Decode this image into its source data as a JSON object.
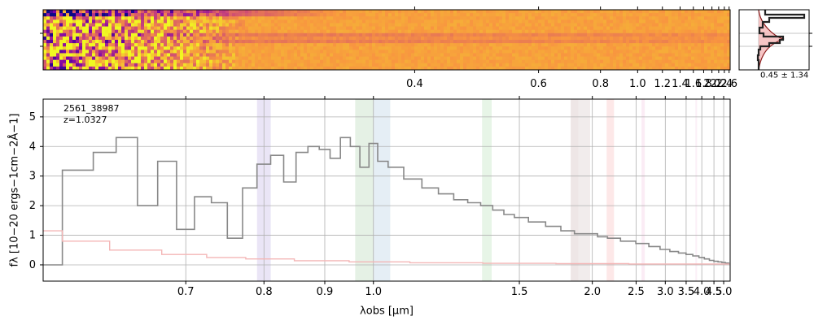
{
  "chart_data": [
    {
      "type": "heatmap",
      "panel": "2d-spectrum",
      "x_scale": "reciprocal",
      "xlim": [
        0.2,
        2.65
      ],
      "x_ticks": [
        0.4,
        0.6,
        0.8,
        1.0,
        1.2,
        1.4,
        1.6,
        1.8,
        2.0,
        2.2,
        2.4,
        2.6
      ],
      "x_tick_labels": [
        "0.4",
        "0.6",
        "0.8",
        "1.0",
        "1.2",
        "1.4",
        "1.6",
        "1.8",
        "2.0",
        "2.2",
        "2.4",
        "2.6"
      ],
      "colormap": "plasma",
      "colors": {
        "low": "#0d0887",
        "mid": "#cc4778",
        "high": "#f0f921",
        "bulk": "#fca636"
      },
      "description_trace": "two bright horizontal traces near spatial center, noisy dark/yellow region at short wavelengths"
    },
    {
      "type": "line",
      "panel": "profile",
      "annotation": "0.45 ± 1.34",
      "colors": {
        "profile": "#222222",
        "model": "#8b1a1a",
        "fill": "#f4b6b6"
      }
    },
    {
      "type": "line",
      "panel": "1d-spectrum",
      "title": "",
      "annotation_lines": [
        "2561_38987",
        "z=1.0327"
      ],
      "xlabel": "λobs [μm]",
      "ylabel": "fλ [10−20 ergs−1cm−2Å−1]",
      "x_scale": "reciprocal",
      "xlim": [
        0.57,
        5.4
      ],
      "ylim": [
        -0.55,
        5.6
      ],
      "x_ticks": [
        0.7,
        0.8,
        0.9,
        1.0,
        1.5,
        2.0,
        2.5,
        3.0,
        3.5,
        4.0,
        4.5,
        5.0
      ],
      "x_tick_labels": [
        "0.7",
        "0.8",
        "0.9",
        "1.0",
        "1.5",
        "2.0",
        "2.5",
        "3.0",
        "3.5",
        "4.0",
        "4.5",
        "5.0"
      ],
      "y_ticks": [
        0,
        1,
        2,
        3,
        4,
        5
      ],
      "y_tick_labels": [
        "0",
        "1",
        "2",
        "3",
        "4",
        "5"
      ],
      "grid": true,
      "line_bands": [
        {
          "x": [
            0.79,
            0.81
          ],
          "color": "#d8d0ee"
        },
        {
          "x": [
            0.96,
            1.0
          ],
          "color": "#cfe6cf"
        },
        {
          "x": [
            1.0,
            1.04
          ],
          "color": "#cfe0ec"
        },
        {
          "x": [
            1.33,
            1.37
          ],
          "color": "#d3ecd3"
        },
        {
          "x": [
            1.82,
            1.88
          ],
          "color": "#e0d2d2"
        },
        {
          "x": [
            1.88,
            1.98
          ],
          "color": "#e6dcdc"
        },
        {
          "x": [
            2.14,
            2.22
          ],
          "color": "#fbd6d6"
        },
        {
          "x": [
            2.58,
            2.63
          ],
          "color": "#f7dcec"
        },
        {
          "x": [
            3.78,
            3.83
          ],
          "color": "#f9e1f0"
        }
      ],
      "series": [
        {
          "role": "flux",
          "color": "#888888",
          "x": [
            0.57,
            0.6,
            0.62,
            0.64,
            0.66,
            0.68,
            0.7,
            0.72,
            0.74,
            0.76,
            0.78,
            0.8,
            0.82,
            0.84,
            0.86,
            0.88,
            0.9,
            0.92,
            0.94,
            0.96,
            0.98,
            1.0,
            1.02,
            1.05,
            1.1,
            1.15,
            1.2,
            1.25,
            1.3,
            1.35,
            1.4,
            1.45,
            1.5,
            1.6,
            1.7,
            1.8,
            1.9,
            2.0,
            2.1,
            2.2,
            2.4,
            2.6,
            2.8,
            3.0,
            3.2,
            3.4,
            3.6,
            3.8,
            4.0,
            4.2,
            4.4,
            4.6,
            4.8,
            5.0,
            5.2,
            5.35
          ],
          "y": [
            0.0,
            3.2,
            3.8,
            4.3,
            2.0,
            3.5,
            1.2,
            2.3,
            2.1,
            0.9,
            2.6,
            3.4,
            3.7,
            2.8,
            3.8,
            4.0,
            3.9,
            3.6,
            4.3,
            4.0,
            3.3,
            4.1,
            3.5,
            3.3,
            2.9,
            2.6,
            2.4,
            2.2,
            2.1,
            2.0,
            1.85,
            1.7,
            1.6,
            1.45,
            1.3,
            1.15,
            1.05,
            1.05,
            0.95,
            0.9,
            0.8,
            0.72,
            0.62,
            0.52,
            0.45,
            0.4,
            0.35,
            0.3,
            0.25,
            0.2,
            0.15,
            0.12,
            0.1,
            0.08,
            0.06,
            0.05
          ]
        },
        {
          "role": "error",
          "color": "#f4b6b6",
          "x": [
            0.57,
            0.6,
            0.65,
            0.7,
            0.75,
            0.8,
            0.9,
            1.0,
            1.2,
            1.5,
            2.0,
            3.0,
            4.0,
            5.0,
            5.35
          ],
          "y": [
            1.15,
            0.8,
            0.5,
            0.35,
            0.25,
            0.2,
            0.14,
            0.1,
            0.07,
            0.05,
            0.04,
            0.03,
            0.03,
            0.03,
            0.03
          ]
        }
      ]
    }
  ]
}
